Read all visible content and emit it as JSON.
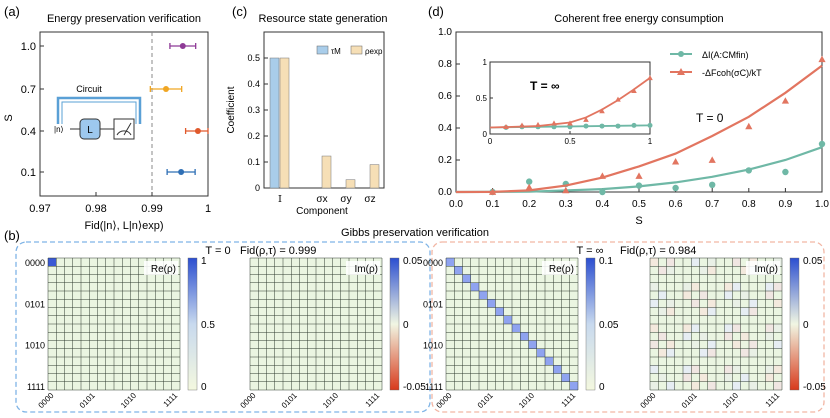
{
  "colors": {
    "purple": "#8e3a96",
    "orange": "#f0a623",
    "red": "#e0592c",
    "blue": "#2e6fb5",
    "tau_M": "#a9cdea",
    "rho_exp": "#f6dfb6",
    "teal": "#6fb8a6",
    "salmon": "#e27560",
    "panel_left_border": "#7fb4e6",
    "panel_right_border": "#f2b6a4",
    "grid_fill": "#eaf5e1",
    "diag_fill": "#8fa3f0",
    "corner_fill": "#3a59d4",
    "circuit_box": "#9dc8ee",
    "circuit_wire": "#5aa0d6"
  },
  "panel_labels": [
    "(a)",
    "(b)",
    "(c)",
    "(d)"
  ],
  "circuit": {
    "label": "Circuit",
    "input": "|n⟩",
    "gate": "L"
  },
  "chart_data": [
    {
      "id": "a",
      "type": "scatter",
      "title": "Energy preservation verification",
      "xlabel": "Fid(|n⟩, L|n⟩exp)",
      "ylabel": "S",
      "xlim": [
        0.97,
        1.0
      ],
      "xticks": [
        "0.97",
        "0.98",
        "0.99",
        "1"
      ],
      "ytick_labels": [
        "1.0",
        "0.7",
        "0.4",
        "0.1"
      ],
      "dashed_line_x": 0.99,
      "points": [
        {
          "s": "1.0",
          "x": 0.9955,
          "err": 0.0023,
          "color": "purple"
        },
        {
          "s": "0.7",
          "x": 0.9925,
          "err": 0.0028,
          "color": "orange"
        },
        {
          "s": "0.4",
          "x": 0.9982,
          "err": 0.0022,
          "color": "red"
        },
        {
          "s": "0.1",
          "x": 0.9952,
          "err": 0.0025,
          "color": "blue"
        }
      ]
    },
    {
      "id": "c",
      "type": "bar",
      "title": "Resource state generation",
      "xlabel": "Component",
      "ylabel": "Coefficient",
      "categories": [
        "𝕀",
        "σx",
        "σy",
        "σz"
      ],
      "ylim": [
        0,
        0.6
      ],
      "yticks": [
        0,
        0.1,
        0.2,
        0.3,
        0.4,
        0.5
      ],
      "series": [
        {
          "name": "τM",
          "values": [
            0.5,
            0.0,
            0.0,
            0.0
          ],
          "color": "tau_M"
        },
        {
          "name": "ρexp",
          "values": [
            0.5,
            0.123,
            0.032,
            0.09
          ],
          "color": "rho_exp"
        }
      ]
    },
    {
      "id": "d",
      "type": "line",
      "title": "Coherent free energy consumption",
      "xlabel": "S",
      "xlim": [
        0,
        1.0
      ],
      "ylim": [
        0,
        1.0
      ],
      "xticks": [
        0,
        0.1,
        0.2,
        0.3,
        0.4,
        0.5,
        0.6,
        0.7,
        0.8,
        0.9,
        1.0
      ],
      "yticks": [
        0,
        0.2,
        0.4,
        0.6,
        0.8,
        1.0
      ],
      "annotation": "T = 0",
      "series": [
        {
          "name": "ΔI(A:CMfin)",
          "marker": "circle",
          "color": "teal",
          "points": [
            [
              0.1,
              0.0
            ],
            [
              0.2,
              0.065
            ],
            [
              0.3,
              0.05
            ],
            [
              0.4,
              0.0
            ],
            [
              0.5,
              0.04
            ],
            [
              0.6,
              0.025
            ],
            [
              0.7,
              0.045
            ],
            [
              0.8,
              0.135
            ],
            [
              0.9,
              0.125
            ],
            [
              1.0,
              0.3
            ]
          ],
          "fit": [
            [
              0.0,
              0.0
            ],
            [
              0.2,
              0.002
            ],
            [
              0.4,
              0.018
            ],
            [
              0.5,
              0.035
            ],
            [
              0.6,
              0.06
            ],
            [
              0.7,
              0.095
            ],
            [
              0.8,
              0.14
            ],
            [
              0.9,
              0.2
            ],
            [
              1.0,
              0.28
            ]
          ]
        },
        {
          "name": "-ΔFcoh(σC)/kT",
          "marker": "triangle",
          "color": "salmon",
          "points": [
            [
              0.1,
              0.0
            ],
            [
              0.2,
              0.03
            ],
            [
              0.3,
              0.01
            ],
            [
              0.4,
              0.1
            ],
            [
              0.5,
              0.1
            ],
            [
              0.6,
              0.19
            ],
            [
              0.7,
              0.2
            ],
            [
              0.8,
              0.41
            ],
            [
              0.9,
              0.57
            ],
            [
              1.0,
              0.83
            ]
          ],
          "fit": [
            [
              0.0,
              0.0
            ],
            [
              0.1,
              0.001
            ],
            [
              0.2,
              0.01
            ],
            [
              0.3,
              0.04
            ],
            [
              0.4,
              0.09
            ],
            [
              0.5,
              0.16
            ],
            [
              0.6,
              0.24
            ],
            [
              0.7,
              0.35
            ],
            [
              0.8,
              0.47
            ],
            [
              0.9,
              0.62
            ],
            [
              1.0,
              0.79
            ]
          ]
        }
      ],
      "inset": {
        "annotation": "T = ∞",
        "xlim": [
          0,
          1
        ],
        "ylim": [
          0,
          1
        ],
        "xticks": [
          "0",
          "0.5",
          "1"
        ],
        "yticks": [
          "0",
          "0.5",
          "1"
        ],
        "series": [
          {
            "color": "teal",
            "marker": "circle",
            "points": [
              [
                0.1,
                0.09
              ],
              [
                0.2,
                0.1
              ],
              [
                0.3,
                0.1
              ],
              [
                0.4,
                0.1
              ],
              [
                0.5,
                0.1
              ],
              [
                0.6,
                0.11
              ],
              [
                0.7,
                0.11
              ],
              [
                0.8,
                0.11
              ],
              [
                0.9,
                0.12
              ],
              [
                1.0,
                0.12
              ]
            ],
            "fit": [
              [
                0,
                0.09
              ],
              [
                1,
                0.12
              ]
            ]
          },
          {
            "color": "salmon",
            "marker": "triangle",
            "points": [
              [
                0.1,
                0.1
              ],
              [
                0.2,
                0.12
              ],
              [
                0.3,
                0.13
              ],
              [
                0.4,
                0.15
              ],
              [
                0.5,
                0.15
              ],
              [
                0.6,
                0.2
              ],
              [
                0.7,
                0.32
              ],
              [
                0.8,
                0.48
              ],
              [
                0.9,
                0.6
              ],
              [
                1.0,
                0.78
              ]
            ],
            "fit": [
              [
                0,
                0.09
              ],
              [
                0.3,
                0.11
              ],
              [
                0.5,
                0.16
              ],
              [
                0.6,
                0.23
              ],
              [
                0.7,
                0.34
              ],
              [
                0.8,
                0.47
              ],
              [
                0.9,
                0.62
              ],
              [
                1.0,
                0.78
              ]
            ]
          }
        ]
      }
    },
    {
      "id": "b",
      "type": "heatmap",
      "title": "Gibbs preservation verification",
      "tick_labels": [
        "0000",
        "0101",
        "1010",
        "1111"
      ],
      "groups": [
        {
          "temperature": "T = 0",
          "fidelity": "Fid(ρ,τ) = 0.999",
          "maps": [
            {
              "label": "Re(ρ)",
              "pattern": "corner",
              "colorbar": [
                "1",
                "0.5",
                "0"
              ]
            },
            {
              "label": "Im(ρ)",
              "pattern": "empty",
              "colorbar": [
                "0.05",
                "0",
                "-0.05"
              ]
            }
          ]
        },
        {
          "temperature": "T = ∞",
          "fidelity": "Fid(ρ,τ) = 0.984",
          "maps": [
            {
              "label": "Re(ρ)",
              "pattern": "diagonal",
              "colorbar": [
                "0.1",
                "0.05",
                "0"
              ]
            },
            {
              "label": "Im(ρ)",
              "pattern": "noise",
              "colorbar": [
                "0.05",
                "0",
                "-0.05"
              ]
            }
          ]
        }
      ]
    }
  ]
}
